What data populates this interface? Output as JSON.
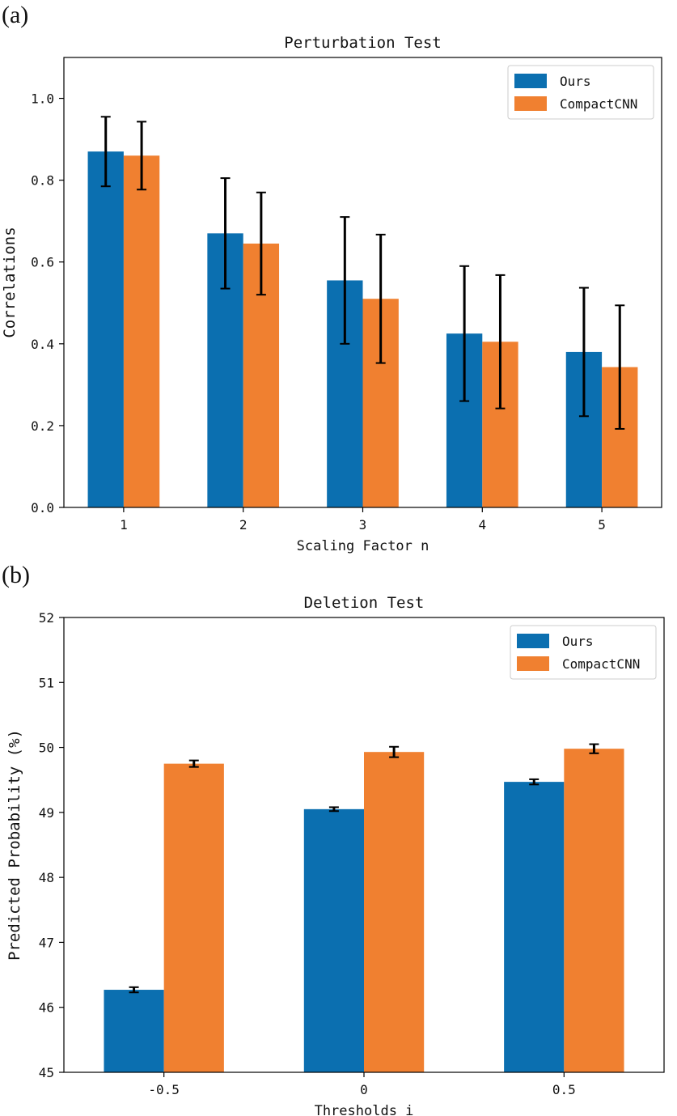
{
  "figure": {
    "panel_a_label": "(a)",
    "panel_b_label": "(b)"
  },
  "chart_data": [
    {
      "type": "bar",
      "title": "Perturbation Test",
      "xlabel": "Scaling Factor n",
      "ylabel": "Correlations",
      "categories": [
        "1",
        "2",
        "3",
        "4",
        "5"
      ],
      "ylim": [
        0.0,
        1.1
      ],
      "yticks": [
        0.0,
        0.2,
        0.4,
        0.6,
        0.8,
        1.0
      ],
      "ytick_labels": [
        "0.0",
        "0.2",
        "0.4",
        "0.6",
        "0.8",
        "1.0"
      ],
      "legend_position": "top-right",
      "grid": false,
      "series": [
        {
          "name": "Ours",
          "color": "#0b6fb0",
          "values": [
            0.87,
            0.67,
            0.555,
            0.425,
            0.38
          ],
          "errors": [
            0.085,
            0.135,
            0.155,
            0.165,
            0.157
          ]
        },
        {
          "name": "CompactCNN",
          "color": "#f08030",
          "values": [
            0.86,
            0.645,
            0.51,
            0.405,
            0.343
          ],
          "errors": [
            0.083,
            0.125,
            0.157,
            0.163,
            0.151
          ]
        }
      ]
    },
    {
      "type": "bar",
      "title": "Deletion Test",
      "xlabel": "Thresholds i",
      "ylabel": "Predicted Probability (%)",
      "categories": [
        "-0.5",
        "0",
        "0.5"
      ],
      "ylim": [
        45,
        52
      ],
      "yticks": [
        45,
        46,
        47,
        48,
        49,
        50,
        51,
        52
      ],
      "ytick_labels": [
        "45",
        "46",
        "47",
        "48",
        "49",
        "50",
        "51",
        "52"
      ],
      "legend_position": "top-right",
      "grid": false,
      "series": [
        {
          "name": "Ours",
          "color": "#0b6fb0",
          "values": [
            46.27,
            49.05,
            49.47
          ],
          "errors": [
            0.04,
            0.03,
            0.04
          ]
        },
        {
          "name": "CompactCNN",
          "color": "#f08030",
          "values": [
            49.75,
            49.93,
            49.98
          ],
          "errors": [
            0.05,
            0.08,
            0.07
          ]
        }
      ]
    }
  ]
}
